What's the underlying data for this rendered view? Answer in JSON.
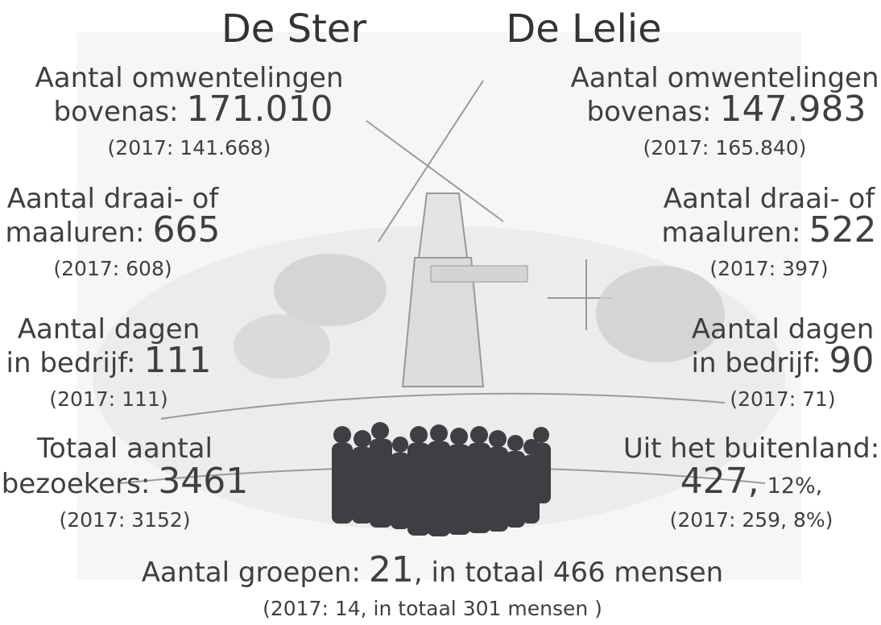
{
  "titles": {
    "left": "De Ster",
    "right": "De Lelie"
  },
  "left": [
    {
      "line1": "Aantal omwentelingen",
      "line2": "bovenas:",
      "value": "171.010",
      "previous": "(2017: 141.668)"
    },
    {
      "line1": "Aantal draai- of",
      "line2": "maaluren:",
      "value": "665",
      "previous": "(2017: 608)"
    },
    {
      "line1": "Aantal dagen",
      "line2": "in bedrijf:",
      "value": "111",
      "previous": "(2017: 111)"
    },
    {
      "line1": "Totaal aantal",
      "line2": "bezoekers:",
      "value": "3461",
      "previous": "(2017: 3152)"
    }
  ],
  "right": [
    {
      "line1": "Aantal omwentelingen",
      "line2": "bovenas:",
      "value": "147.983",
      "previous": "(2017: 165.840)"
    },
    {
      "line1": "Aantal draai- of",
      "line2": "maaluren:",
      "value": "522",
      "previous": "(2017: 397)"
    },
    {
      "line1": "Aantal dagen",
      "line2": "in bedrijf:",
      "value": "90",
      "previous": "(2017: 71)"
    },
    {
      "line1": "Uit het buitenland:",
      "value": "427,",
      "share": "12%,",
      "previous": "(2017: 259, 8%)"
    }
  ],
  "groups": {
    "label": "Aantal groepen:",
    "value": "21",
    "rest": ", in totaal 466 mensen",
    "previous": "(2017: 14, in totaal 301 mensen )"
  }
}
